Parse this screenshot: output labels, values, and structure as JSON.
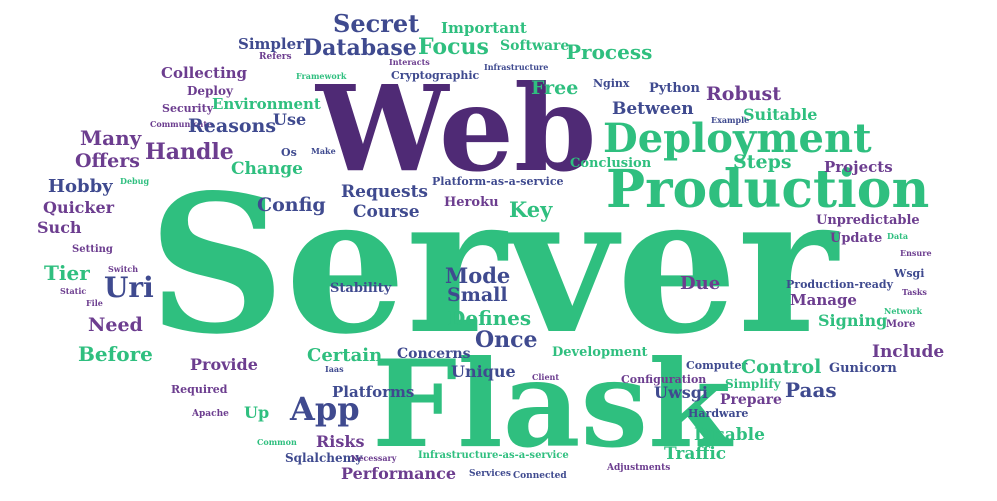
{
  "words": [
    {
      "text": "Server",
      "color": "#2fbf7f"
    },
    {
      "text": "Flask",
      "color": "#2fbf7f"
    },
    {
      "text": "Web",
      "color": "#4f2a75"
    },
    {
      "text": "Production",
      "color": "#2fbf7f"
    },
    {
      "text": "Deployment",
      "color": "#2fbf7f"
    },
    {
      "text": "App",
      "color": "#3f4a8f"
    },
    {
      "text": "Secret",
      "color": "#3f4a8f"
    },
    {
      "text": "Database",
      "color": "#3f4a8f"
    },
    {
      "text": "Focus",
      "color": "#2fbf7f"
    },
    {
      "text": "Important",
      "color": "#2fbf7f"
    },
    {
      "text": "Software",
      "color": "#2fbf7f"
    },
    {
      "text": "Process",
      "color": "#2fbf7f"
    },
    {
      "text": "Simpler",
      "color": "#3f4a8f"
    },
    {
      "text": "Refers",
      "color": "#6c3d8f"
    },
    {
      "text": "Collecting",
      "color": "#6c3d8f"
    },
    {
      "text": "Deploy",
      "color": "#6c3d8f"
    },
    {
      "text": "Security",
      "color": "#6c3d8f"
    },
    {
      "text": "Communicate",
      "color": "#6c3d8f"
    },
    {
      "text": "Environment",
      "color": "#2fbf7f"
    },
    {
      "text": "Reasons",
      "color": "#3f4a8f"
    },
    {
      "text": "Use",
      "color": "#3f4a8f"
    },
    {
      "text": "Cryptographic",
      "color": "#3f4a8f"
    },
    {
      "text": "Infrastructure",
      "color": "#3f4a8f"
    },
    {
      "text": "Interacts",
      "color": "#6c3d8f"
    },
    {
      "text": "Framework",
      "color": "#2fbf7f"
    },
    {
      "text": "Free",
      "color": "#2fbf7f"
    },
    {
      "text": "Nginx",
      "color": "#3f4a8f"
    },
    {
      "text": "Python",
      "color": "#3f4a8f"
    },
    {
      "text": "Robust",
      "color": "#6c3d8f"
    },
    {
      "text": "Between",
      "color": "#3f4a8f"
    },
    {
      "text": "Suitable",
      "color": "#2fbf7f"
    },
    {
      "text": "Example",
      "color": "#3f4a8f"
    },
    {
      "text": "Many",
      "color": "#6c3d8f"
    },
    {
      "text": "Handle",
      "color": "#6c3d8f"
    },
    {
      "text": "Offers",
      "color": "#6c3d8f"
    },
    {
      "text": "Os",
      "color": "#3f4a8f"
    },
    {
      "text": "Make",
      "color": "#3f4a8f"
    },
    {
      "text": "Change",
      "color": "#2fbf7f"
    },
    {
      "text": "Hobby",
      "color": "#3f4a8f"
    },
    {
      "text": "Debug",
      "color": "#2fbf7f"
    },
    {
      "text": "Quicker",
      "color": "#6c3d8f"
    },
    {
      "text": "Such",
      "color": "#6c3d8f"
    },
    {
      "text": "Conclusion",
      "color": "#2fbf7f"
    },
    {
      "text": "Steps",
      "color": "#2fbf7f"
    },
    {
      "text": "Projects",
      "color": "#6c3d8f"
    },
    {
      "text": "Requests",
      "color": "#3f4a8f"
    },
    {
      "text": "Config",
      "color": "#3f4a8f"
    },
    {
      "text": "Platform-as-a-service",
      "color": "#3f4a8f"
    },
    {
      "text": "Course",
      "color": "#3f4a8f"
    },
    {
      "text": "Heroku",
      "color": "#6c3d8f"
    },
    {
      "text": "Key",
      "color": "#2fbf7f"
    },
    {
      "text": "Unpredictable",
      "color": "#6c3d8f"
    },
    {
      "text": "Update",
      "color": "#6c3d8f"
    },
    {
      "text": "Data",
      "color": "#2fbf7f"
    },
    {
      "text": "Ensure",
      "color": "#6c3d8f"
    },
    {
      "text": "Setting",
      "color": "#6c3d8f"
    },
    {
      "text": "Tier",
      "color": "#2fbf7f"
    },
    {
      "text": "Switch",
      "color": "#6c3d8f"
    },
    {
      "text": "Uri",
      "color": "#3f4a8f"
    },
    {
      "text": "Static",
      "color": "#6c3d8f"
    },
    {
      "text": "File",
      "color": "#6c3d8f"
    },
    {
      "text": "Mode",
      "color": "#3f4a8f"
    },
    {
      "text": "Small",
      "color": "#3f4a8f"
    },
    {
      "text": "Stability",
      "color": "#3f4a8f"
    },
    {
      "text": "Defines",
      "color": "#2fbf7f"
    },
    {
      "text": "Due",
      "color": "#6c3d8f"
    },
    {
      "text": "Production-ready",
      "color": "#3f4a8f"
    },
    {
      "text": "Wsgi",
      "color": "#3f4a8f"
    },
    {
      "text": "Manage",
      "color": "#6c3d8f"
    },
    {
      "text": "Tasks",
      "color": "#6c3d8f"
    },
    {
      "text": "Need",
      "color": "#6c3d8f"
    },
    {
      "text": "Once",
      "color": "#3f4a8f"
    },
    {
      "text": "Signing",
      "color": "#2fbf7f"
    },
    {
      "text": "More",
      "color": "#6c3d8f"
    },
    {
      "text": "Network",
      "color": "#2fbf7f"
    },
    {
      "text": "Before",
      "color": "#2fbf7f"
    },
    {
      "text": "Certain",
      "color": "#2fbf7f"
    },
    {
      "text": "Concerns",
      "color": "#3f4a8f"
    },
    {
      "text": "Development",
      "color": "#2fbf7f"
    },
    {
      "text": "Include",
      "color": "#6c3d8f"
    },
    {
      "text": "Provide",
      "color": "#6c3d8f"
    },
    {
      "text": "Unique",
      "color": "#3f4a8f"
    },
    {
      "text": "Computer",
      "color": "#3f4a8f"
    },
    {
      "text": "Control",
      "color": "#2fbf7f"
    },
    {
      "text": "Gunicorn",
      "color": "#3f4a8f"
    },
    {
      "text": "Client",
      "color": "#6c3d8f"
    },
    {
      "text": "Configuration",
      "color": "#6c3d8f"
    },
    {
      "text": "Simplify",
      "color": "#2fbf7f"
    },
    {
      "text": "Paas",
      "color": "#3f4a8f"
    },
    {
      "text": "Uwsgi",
      "color": "#3f4a8f"
    },
    {
      "text": "Prepare",
      "color": "#6c3d8f"
    },
    {
      "text": "Platforms",
      "color": "#3f4a8f"
    },
    {
      "text": "Required",
      "color": "#6c3d8f"
    },
    {
      "text": "Up",
      "color": "#2fbf7f"
    },
    {
      "text": "Apache",
      "color": "#6c3d8f"
    },
    {
      "text": "Hardware",
      "color": "#3f4a8f"
    },
    {
      "text": "Risks",
      "color": "#6c3d8f"
    },
    {
      "text": "Disable",
      "color": "#2fbf7f"
    },
    {
      "text": "Common",
      "color": "#2fbf7f"
    },
    {
      "text": "Sqlalchemy",
      "color": "#3f4a8f"
    },
    {
      "text": "Necessary",
      "color": "#6c3d8f"
    },
    {
      "text": "Infrastructure-as-a-service",
      "color": "#2fbf7f"
    },
    {
      "text": "Traffic",
      "color": "#2fbf7f"
    },
    {
      "text": "Performance",
      "color": "#6c3d8f"
    },
    {
      "text": "Services",
      "color": "#3f4a8f"
    },
    {
      "text": "Connected",
      "color": "#3f4a8f"
    },
    {
      "text": "Adjustments",
      "color": "#6c3d8f"
    },
    {
      "text": "Iaas",
      "color": "#3f4a8f"
    }
  ]
}
